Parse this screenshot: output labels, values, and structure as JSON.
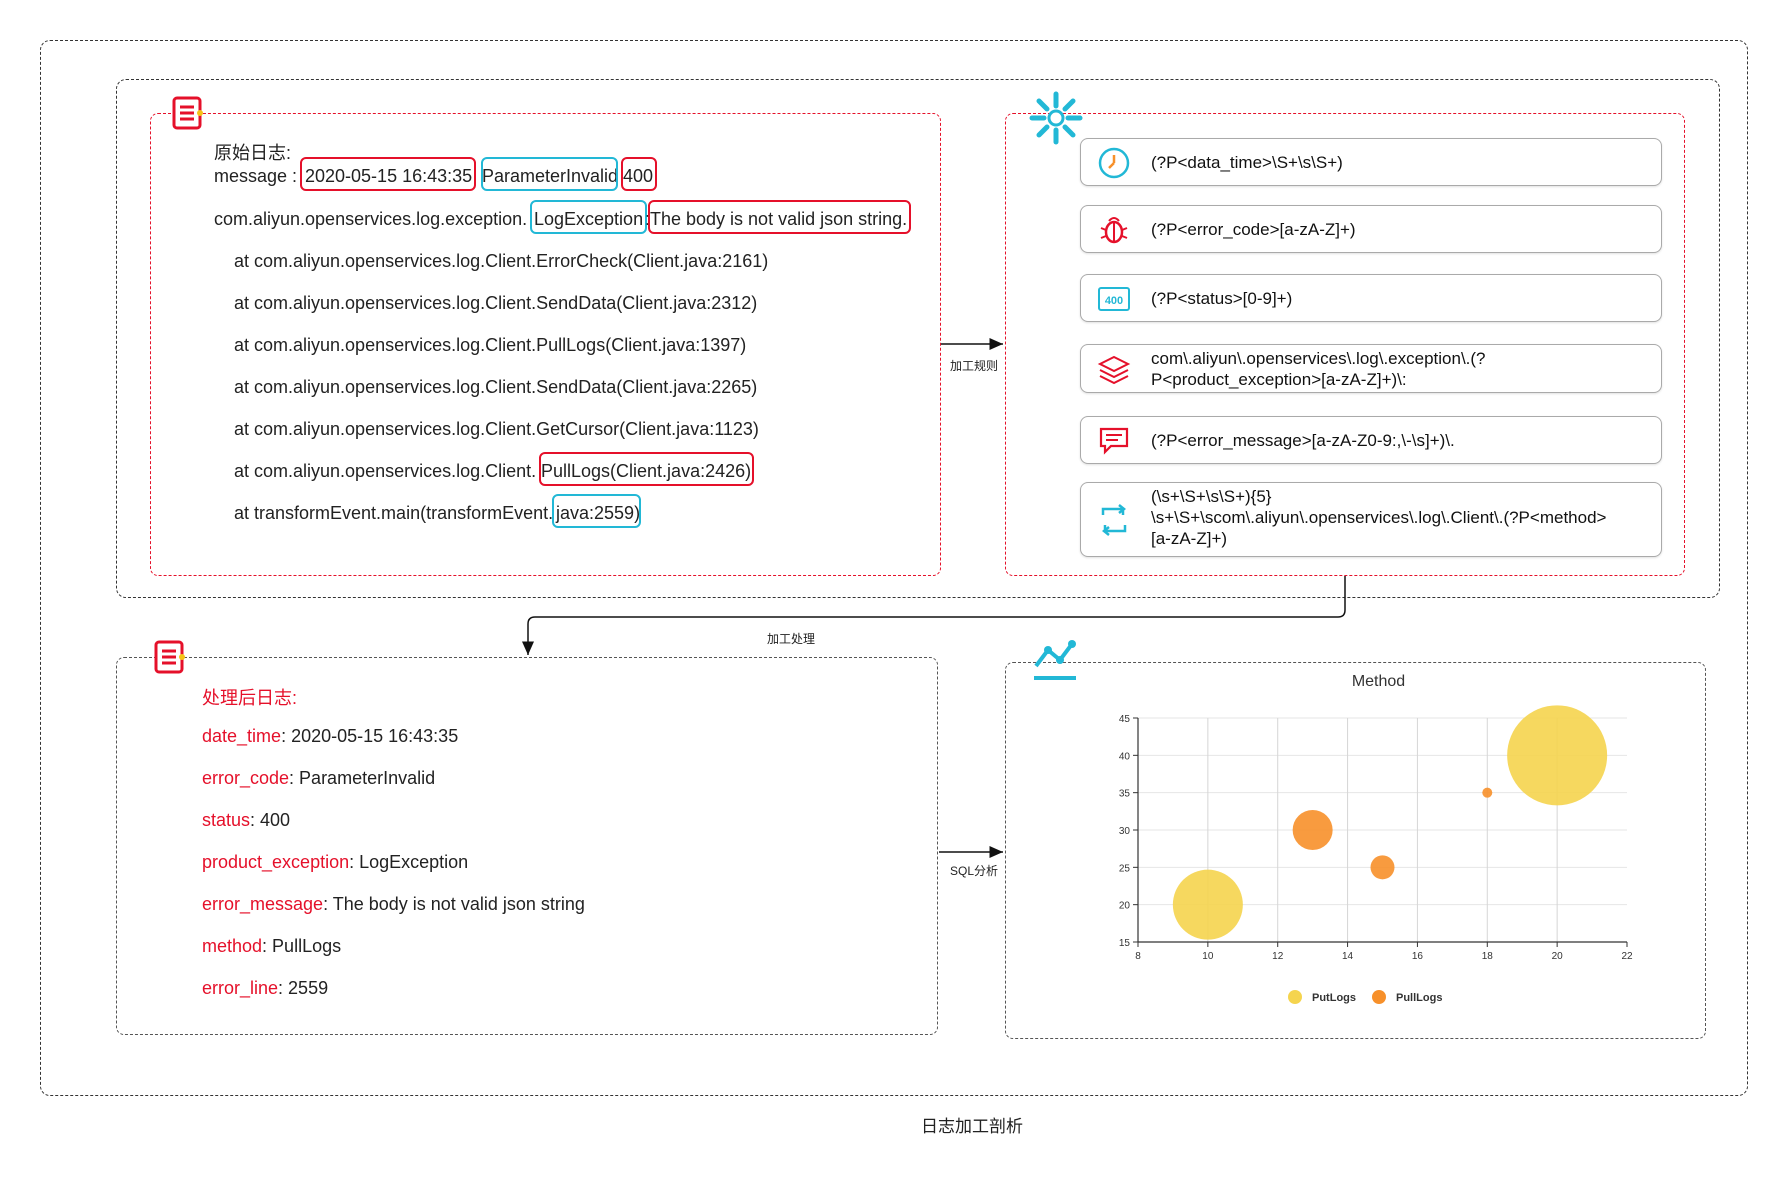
{
  "caption": "日志加工剖析",
  "raw_log": {
    "title": "原始日志:",
    "message_prefix": "message : ",
    "datetime": "2020-05-15 16:43:35",
    "error_code": "ParameterInvalid",
    "status": "400",
    "exception_prefix": "com.aliyun.openservices.log.exception.",
    "exception_name": "LogException",
    "exception_sep": ":",
    "error_message": "The body is not valid json string.",
    "stack": [
      "at com.aliyun.openservices.log.Client.ErrorCheck(Client.java:2161)",
      "at com.aliyun.openservices.log.Client.SendData(Client.java:2312)",
      "at com.aliyun.openservices.log.Client.PullLogs(Client.java:1397)",
      "at com.aliyun.openservices.log.Client.SendData(Client.java:2265)",
      "at com.aliyun.openservices.log.Client.GetCursor(Client.java:1123)"
    ],
    "stack_pull_prefix": "at com.aliyun.openservices.log.Client.",
    "stack_pull_method": "PullLogs(Client.java:2426)",
    "stack_last_prefix": "at transformEvent.main(transformEvent.",
    "stack_last_line": "java:2559)"
  },
  "arrows": {
    "rules_label": "加工规则",
    "process_label": "加工处理",
    "sql_label": "SQL分析"
  },
  "rules": [
    {
      "icon": "clock-icon",
      "text": "(?P<data_time>\\S+\\s\\S+)"
    },
    {
      "icon": "bug-icon",
      "text": "(?P<error_code>[a-zA-Z]+)"
    },
    {
      "icon": "status-400-icon",
      "icon_text": "400",
      "text": "(?P<status>[0-9]+)"
    },
    {
      "icon": "layers-icon",
      "text": "com\\.aliyun\\.openservices\\.log\\.exception\\.(?\nP<product_exception>[a-zA-Z]+)\\:"
    },
    {
      "icon": "message-icon",
      "text": "(?P<error_message>[a-zA-Z0-9:,\\-\\s]+)\\."
    },
    {
      "icon": "refresh-icon",
      "text": "(\\s+\\S+\\s\\S+){5}\n\\s+\\S+\\scom\\.aliyun\\.openservices\\.log\\.Client\\.(?P<method>\n[a-zA-Z]+)"
    }
  ],
  "processed_log": {
    "title": "处理后日志:",
    "fields": [
      {
        "key": "date_time",
        "value": ": 2020-05-15 16:43:35"
      },
      {
        "key": "error_code",
        "value": ": ParameterInvalid"
      },
      {
        "key": "status",
        "value": ": 400"
      },
      {
        "key": "product_exception",
        "value": ": LogException"
      },
      {
        "key": "error_message",
        "value": ": The body is not valid json string"
      },
      {
        "key": "method",
        "value": ": PullLogs"
      },
      {
        "key": "error_line",
        "value": ": 2559"
      }
    ]
  },
  "colors": {
    "red": "#e5102a",
    "cyan": "#22b8d6",
    "putlogs": "#f5d44e",
    "pulllogs": "#f7902a"
  },
  "chart_data": {
    "type": "scatter",
    "title": "Method",
    "xlim": [
      8,
      22
    ],
    "ylim": [
      15,
      45
    ],
    "x_ticks": [
      8,
      10,
      12,
      14,
      16,
      18,
      20,
      22
    ],
    "y_ticks": [
      15,
      20,
      25,
      30,
      35,
      40,
      45
    ],
    "legend_position": "bottom",
    "series": [
      {
        "name": "PutLogs",
        "color": "#f5d44e",
        "points": [
          {
            "x": 10,
            "y": 20,
            "size": 35
          },
          {
            "x": 20,
            "y": 40,
            "size": 50
          }
        ]
      },
      {
        "name": "PullLogs",
        "color": "#f7902a",
        "points": [
          {
            "x": 13,
            "y": 30,
            "size": 20
          },
          {
            "x": 15,
            "y": 25,
            "size": 12
          },
          {
            "x": 18,
            "y": 35,
            "size": 5
          }
        ]
      }
    ]
  }
}
